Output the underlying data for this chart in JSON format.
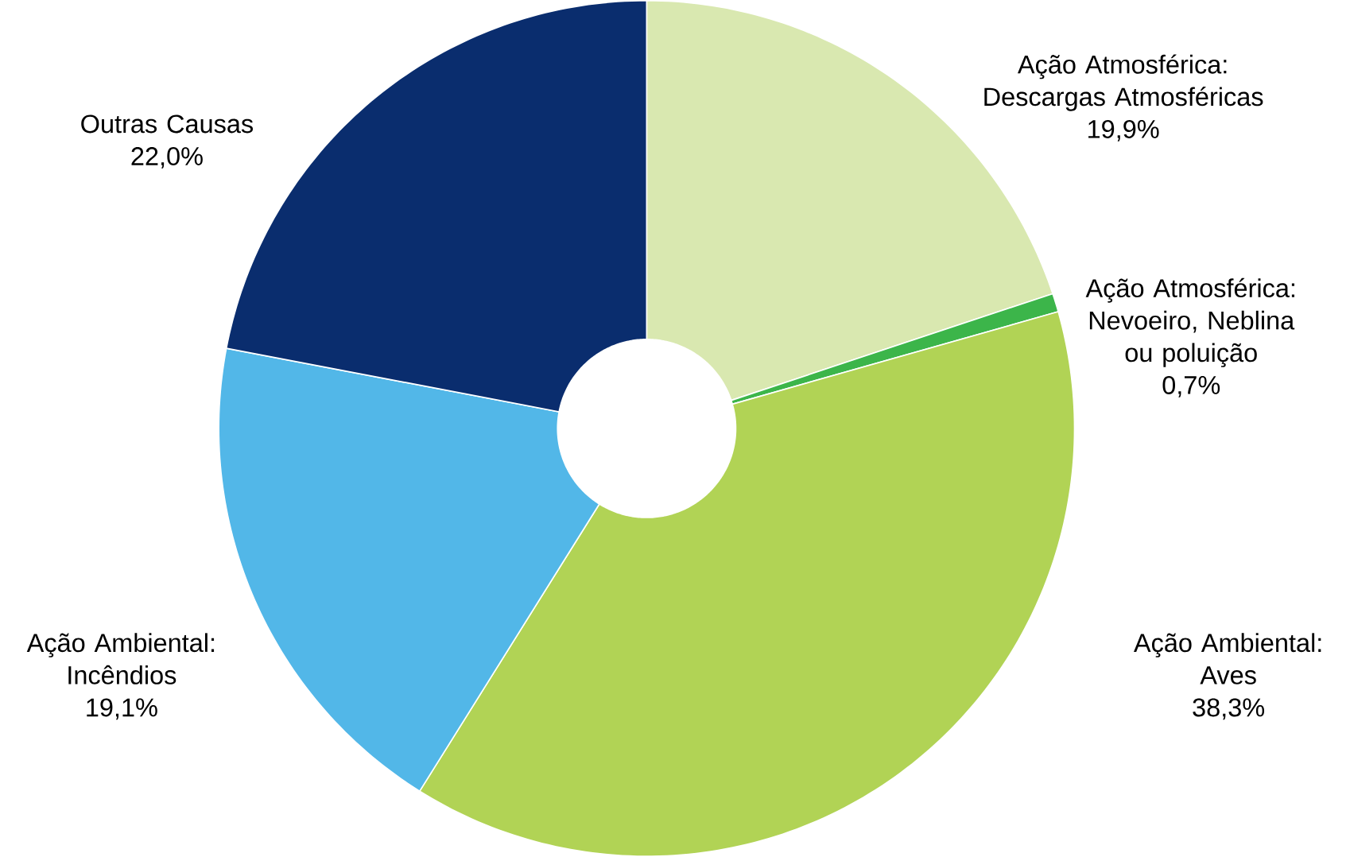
{
  "chart_data": {
    "type": "donut",
    "categories": [
      "Ação Atmosférica: Descargas Atmosféricas",
      "Ação Atmosférica: Nevoeiro, Neblina ou poluição",
      "Ação Ambiental: Aves",
      "Ação Ambiental: Incêndios",
      "Outras Causas"
    ],
    "values": [
      19.9,
      0.7,
      38.3,
      19.1,
      22.0
    ],
    "value_labels": [
      "19,9%",
      "0,7%",
      "38,3%",
      "19,1%",
      "22,0%"
    ],
    "colors": [
      "#d9e8b0",
      "#3cb54a",
      "#b1d355",
      "#52b7e8",
      "#0a2d6e"
    ]
  }
}
